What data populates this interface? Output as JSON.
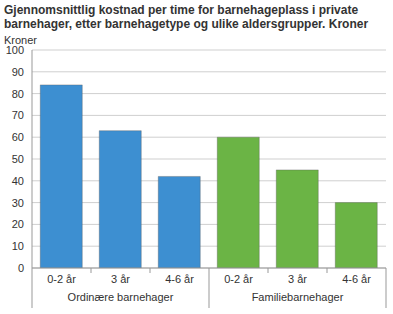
{
  "chart_data": {
    "type": "bar",
    "title": "Gjennomsnittlig kostnad per time for barnehageplass i private barnehager, etter barnehagetype og ulike aldersgrupper. Kroner",
    "ylabel": "Kroner",
    "groups": [
      {
        "name": "Ordinære barnehager",
        "color": "#3d8fd1",
        "categories": [
          "0-2 år",
          "3 år",
          "4-6 år"
        ],
        "values": [
          84,
          63,
          42
        ]
      },
      {
        "name": "Familiebarnehager",
        "color": "#6bb445",
        "categories": [
          "0-2 år",
          "3 år",
          "4-6 år"
        ],
        "values": [
          60,
          45,
          30
        ]
      }
    ],
    "ylim": [
      0,
      100
    ],
    "yticks": [
      0,
      10,
      20,
      30,
      40,
      50,
      60,
      70,
      80,
      90,
      100
    ],
    "grid": true
  }
}
